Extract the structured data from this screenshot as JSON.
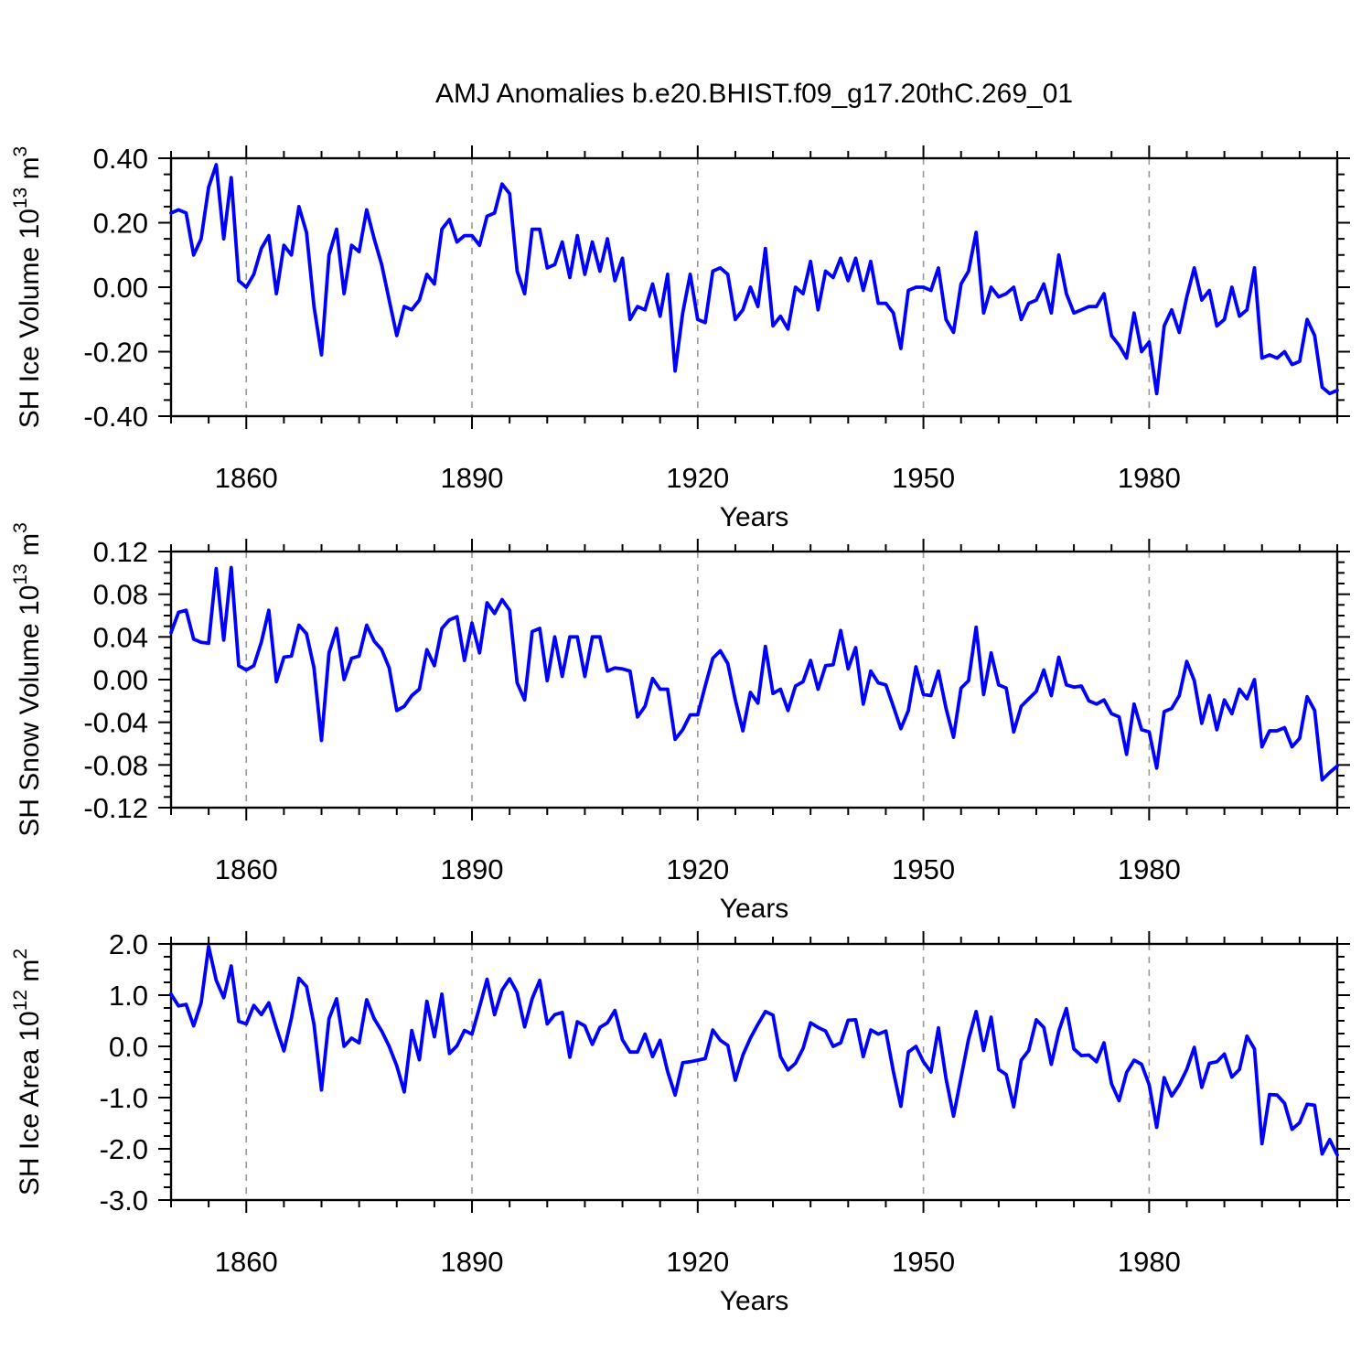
{
  "chart_data": {
    "type": "line",
    "title": "AMJ Anomalies b.e20.BHIST.f09_g17.20thC.269_01",
    "line_color": "#0000ff",
    "background": "#ffffff",
    "grid_color": "#999999",
    "x_axis": {
      "label": "Years",
      "start_year": 1850,
      "end_year": 2005,
      "major_ticks": [
        1860,
        1890,
        1920,
        1950,
        1980
      ],
      "major_tick_labels": [
        "1860",
        "1890",
        "1920",
        "1950",
        "1980"
      ],
      "minor_tick_step": 5,
      "dashed_gridlines_at_major_ticks": true
    },
    "panels": [
      {
        "name": "sh-ice-volume",
        "ylabel_plain": "SH Ice Volume 10^13 m^3",
        "ylabel_parts": [
          {
            "t": "SH Ice Volume 10",
            "sup": false
          },
          {
            "t": "13",
            "sup": true
          },
          {
            "t": " m",
            "sup": false
          },
          {
            "t": "3",
            "sup": true
          }
        ],
        "ylim": [
          -0.4,
          0.4
        ],
        "ytick_values": [
          0.4,
          0.2,
          0.0,
          -0.2,
          -0.4
        ],
        "ytick_labels": [
          "0.40",
          "0.20",
          "0.00",
          "-0.20",
          "-0.40"
        ],
        "yminor_step": 0.05,
        "values": [
          0.23,
          0.24,
          0.23,
          0.1,
          0.15,
          0.31,
          0.38,
          0.15,
          0.34,
          0.02,
          0.0,
          0.04,
          0.12,
          0.16,
          -0.02,
          0.13,
          0.1,
          0.25,
          0.17,
          -0.06,
          -0.21,
          0.1,
          0.18,
          -0.02,
          0.13,
          0.11,
          0.24,
          0.15,
          0.07,
          -0.04,
          -0.15,
          -0.06,
          -0.07,
          -0.04,
          0.04,
          0.01,
          0.18,
          0.21,
          0.14,
          0.16,
          0.16,
          0.13,
          0.22,
          0.23,
          0.32,
          0.29,
          0.05,
          -0.02,
          0.18,
          0.18,
          0.06,
          0.07,
          0.14,
          0.03,
          0.16,
          0.04,
          0.14,
          0.05,
          0.15,
          0.02,
          0.09,
          -0.1,
          -0.06,
          -0.07,
          0.01,
          -0.09,
          0.04,
          -0.26,
          -0.08,
          0.04,
          -0.1,
          -0.11,
          0.05,
          0.06,
          0.04,
          -0.1,
          -0.07,
          0.0,
          -0.06,
          0.12,
          -0.12,
          -0.09,
          -0.13,
          0.0,
          -0.02,
          0.08,
          -0.07,
          0.05,
          0.03,
          0.09,
          0.02,
          0.09,
          -0.01,
          0.08,
          -0.05,
          -0.05,
          -0.08,
          -0.19,
          -0.01,
          0.0,
          0.0,
          -0.01,
          0.06,
          -0.1,
          -0.14,
          0.01,
          0.05,
          0.17,
          -0.08,
          0.0,
          -0.03,
          -0.02,
          0.0,
          -0.1,
          -0.05,
          -0.04,
          0.01,
          -0.08,
          0.1,
          -0.02,
          -0.08,
          -0.07,
          -0.06,
          -0.06,
          -0.02,
          -0.15,
          -0.18,
          -0.22,
          -0.08,
          -0.2,
          -0.17,
          -0.33,
          -0.12,
          -0.07,
          -0.14,
          -0.03,
          0.06,
          -0.04,
          -0.01,
          -0.12,
          -0.1,
          0.0,
          -0.09,
          -0.07,
          0.06,
          -0.22,
          -0.21,
          -0.22,
          -0.2,
          -0.24,
          -0.23,
          -0.1,
          -0.15,
          -0.31,
          -0.33,
          -0.32
        ]
      },
      {
        "name": "sh-snow-volume",
        "ylabel_plain": "SH Snow Volume 10^13 m^3",
        "ylabel_parts": [
          {
            "t": "SH Snow Volume 10",
            "sup": false
          },
          {
            "t": "13",
            "sup": true
          },
          {
            "t": " m",
            "sup": false
          },
          {
            "t": "3",
            "sup": true
          }
        ],
        "ylim": [
          -0.12,
          0.12
        ],
        "ytick_values": [
          0.12,
          0.08,
          0.04,
          0.0,
          -0.04,
          -0.08,
          -0.12
        ],
        "ytick_labels": [
          "0.12",
          "0.08",
          "0.04",
          "0.00",
          "-0.04",
          "-0.08",
          "-0.12"
        ],
        "yminor_step": 0.01,
        "values": [
          0.044,
          0.063,
          0.065,
          0.038,
          0.035,
          0.034,
          0.104,
          0.037,
          0.105,
          0.013,
          0.009,
          0.013,
          0.035,
          0.065,
          -0.002,
          0.021,
          0.022,
          0.051,
          0.043,
          0.011,
          -0.057,
          0.025,
          0.048,
          0.0,
          0.02,
          0.022,
          0.051,
          0.036,
          0.028,
          0.011,
          -0.029,
          -0.025,
          -0.015,
          -0.009,
          0.028,
          0.013,
          0.048,
          0.056,
          0.059,
          0.018,
          0.053,
          0.025,
          0.072,
          0.062,
          0.075,
          0.065,
          -0.003,
          -0.019,
          0.045,
          0.048,
          -0.001,
          0.04,
          0.003,
          0.04,
          0.04,
          0.003,
          0.04,
          0.04,
          0.008,
          0.011,
          0.01,
          0.008,
          -0.035,
          -0.025,
          0.001,
          -0.009,
          -0.009,
          -0.056,
          -0.047,
          -0.033,
          -0.033,
          -0.006,
          0.02,
          0.027,
          0.015,
          -0.019,
          -0.048,
          -0.012,
          -0.022,
          0.031,
          -0.013,
          -0.009,
          -0.029,
          -0.006,
          -0.002,
          0.018,
          -0.009,
          0.013,
          0.014,
          0.046,
          0.01,
          0.03,
          -0.023,
          0.008,
          -0.003,
          -0.005,
          -0.025,
          -0.046,
          -0.029,
          0.012,
          -0.014,
          -0.015,
          0.008,
          -0.027,
          -0.054,
          -0.008,
          -0.001,
          0.049,
          -0.014,
          0.025,
          -0.005,
          -0.008,
          -0.049,
          -0.025,
          -0.018,
          -0.011,
          0.009,
          -0.015,
          0.021,
          -0.005,
          -0.007,
          -0.006,
          -0.02,
          -0.023,
          -0.019,
          -0.032,
          -0.035,
          -0.07,
          -0.023,
          -0.047,
          -0.049,
          -0.083,
          -0.03,
          -0.027,
          -0.015,
          0.017,
          -0.001,
          -0.041,
          -0.015,
          -0.047,
          -0.019,
          -0.032,
          -0.009,
          -0.018,
          0.0,
          -0.063,
          -0.048,
          -0.048,
          -0.045,
          -0.063,
          -0.055,
          -0.016,
          -0.029,
          -0.094,
          -0.087,
          -0.081
        ]
      },
      {
        "name": "sh-ice-area",
        "ylabel_plain": "SH Ice Area 10^12 m^2",
        "ylabel_parts": [
          {
            "t": "SH Ice Area 10",
            "sup": false
          },
          {
            "t": "12",
            "sup": true
          },
          {
            "t": " m",
            "sup": false
          },
          {
            "t": "2",
            "sup": true
          }
        ],
        "ylim": [
          -3.0,
          2.0
        ],
        "ytick_values": [
          2.0,
          1.0,
          0.0,
          -1.0,
          -2.0,
          -3.0
        ],
        "ytick_labels": [
          "2.0",
          "1.0",
          "0.0",
          "-1.0",
          "-2.0",
          "-3.0"
        ],
        "yminor_step": 0.25,
        "values": [
          1.02,
          0.79,
          0.82,
          0.4,
          0.85,
          1.95,
          1.29,
          0.95,
          1.57,
          0.49,
          0.44,
          0.8,
          0.62,
          0.85,
          0.36,
          -0.09,
          0.55,
          1.33,
          1.17,
          0.43,
          -0.85,
          0.54,
          0.93,
          0.0,
          0.16,
          0.07,
          0.91,
          0.54,
          0.3,
          0.0,
          -0.38,
          -0.89,
          0.31,
          -0.26,
          0.88,
          0.19,
          1.02,
          -0.14,
          0.01,
          0.31,
          0.24,
          0.77,
          1.31,
          0.62,
          1.1,
          1.32,
          1.05,
          0.38,
          0.93,
          1.29,
          0.44,
          0.62,
          0.66,
          -0.21,
          0.48,
          0.4,
          0.04,
          0.37,
          0.46,
          0.7,
          0.13,
          -0.11,
          -0.11,
          0.24,
          -0.2,
          0.12,
          -0.49,
          -0.95,
          -0.32,
          -0.3,
          -0.27,
          -0.24,
          0.32,
          0.12,
          0.02,
          -0.66,
          -0.17,
          0.16,
          0.43,
          0.68,
          0.61,
          -0.2,
          -0.46,
          -0.33,
          -0.04,
          0.46,
          0.37,
          0.3,
          0.0,
          0.07,
          0.51,
          0.52,
          -0.2,
          0.32,
          0.24,
          0.3,
          -0.49,
          -1.17,
          -0.11,
          0.0,
          -0.3,
          -0.5,
          0.36,
          -0.63,
          -1.36,
          -0.61,
          0.14,
          0.68,
          -0.08,
          0.57,
          -0.45,
          -0.55,
          -1.18,
          -0.27,
          -0.08,
          0.52,
          0.37,
          -0.35,
          0.3,
          0.74,
          -0.05,
          -0.18,
          -0.17,
          -0.3,
          0.07,
          -0.73,
          -1.06,
          -0.51,
          -0.27,
          -0.35,
          -0.75,
          -1.58,
          -0.61,
          -0.97,
          -0.75,
          -0.45,
          -0.02,
          -0.8,
          -0.33,
          -0.3,
          -0.15,
          -0.6,
          -0.45,
          0.2,
          -0.05,
          -1.9,
          -0.94,
          -0.95,
          -1.11,
          -1.62,
          -1.49,
          -1.13,
          -1.15,
          -2.1,
          -1.82,
          -2.12
        ]
      }
    ]
  }
}
